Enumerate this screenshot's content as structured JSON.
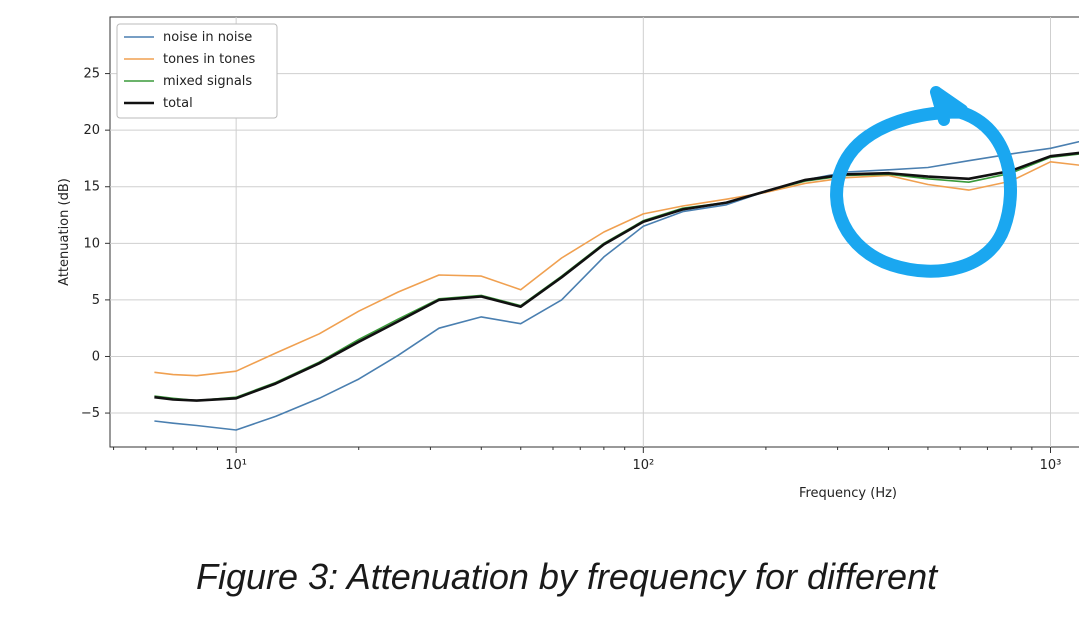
{
  "caption": "Figure 3: Attenuation by frequency for different",
  "chart_data": {
    "type": "line",
    "title": "",
    "xlabel": "Frequency (Hz)",
    "ylabel": "Attenuation (dB)",
    "xscale": "log",
    "xlim": [
      4.9,
      1400
    ],
    "ylim": [
      -8,
      30
    ],
    "grid": true,
    "legend_position": "top-left",
    "x": [
      6.3,
      7,
      8,
      10,
      12.5,
      16,
      20,
      25,
      31.5,
      40,
      50,
      63,
      80,
      100,
      125,
      160,
      200,
      250,
      315,
      400,
      500,
      630,
      800,
      1000,
      1250,
      1400
    ],
    "series": [
      {
        "name": "noise in noise",
        "color": "#4a7fb0",
        "values": [
          -5.7,
          -5.9,
          -6.1,
          -6.5,
          -5.3,
          -3.7,
          -2.0,
          0.1,
          2.5,
          3.5,
          2.9,
          5.0,
          8.8,
          11.5,
          12.8,
          13.4,
          14.6,
          15.6,
          16.3,
          16.5,
          16.7,
          17.3,
          17.9,
          18.4,
          19.2,
          19.0
        ]
      },
      {
        "name": "tones in tones",
        "color": "#f0a050",
        "values": [
          -1.4,
          -1.6,
          -1.7,
          -1.3,
          0.3,
          2.0,
          4.0,
          5.7,
          7.2,
          7.1,
          5.9,
          8.7,
          11.0,
          12.6,
          13.3,
          13.9,
          14.5,
          15.3,
          15.8,
          16.0,
          15.2,
          14.7,
          15.5,
          17.2,
          16.8,
          16.5
        ]
      },
      {
        "name": "mixed signals",
        "color": "#3a9a3a",
        "values": [
          -3.5,
          -3.7,
          -3.9,
          -3.6,
          -2.3,
          -0.5,
          1.5,
          3.3,
          5.1,
          5.4,
          4.5,
          7.1,
          10.0,
          12.0,
          13.1,
          13.6,
          14.6,
          15.5,
          16.0,
          16.1,
          15.7,
          15.4,
          16.2,
          17.6,
          18.0,
          17.8
        ]
      },
      {
        "name": "total",
        "color": "#111111",
        "values": [
          -3.6,
          -3.8,
          -3.9,
          -3.7,
          -2.4,
          -0.6,
          1.3,
          3.1,
          5.0,
          5.3,
          4.4,
          7.0,
          9.9,
          11.9,
          13.0,
          13.6,
          14.6,
          15.6,
          16.1,
          16.2,
          15.9,
          15.7,
          16.4,
          17.7,
          18.1,
          17.9
        ]
      }
    ],
    "y_ticks": [
      -5,
      0,
      5,
      10,
      15,
      20,
      25
    ],
    "x_major_ticks": [
      {
        "value": 10,
        "label": "10¹"
      },
      {
        "value": 100,
        "label": "10²"
      },
      {
        "value": 1000,
        "label": "10³"
      }
    ],
    "annotation": {
      "type": "hand-drawn circle with arrow",
      "color": "#1aa7f0",
      "around_x": [
        400,
        1000
      ]
    }
  }
}
